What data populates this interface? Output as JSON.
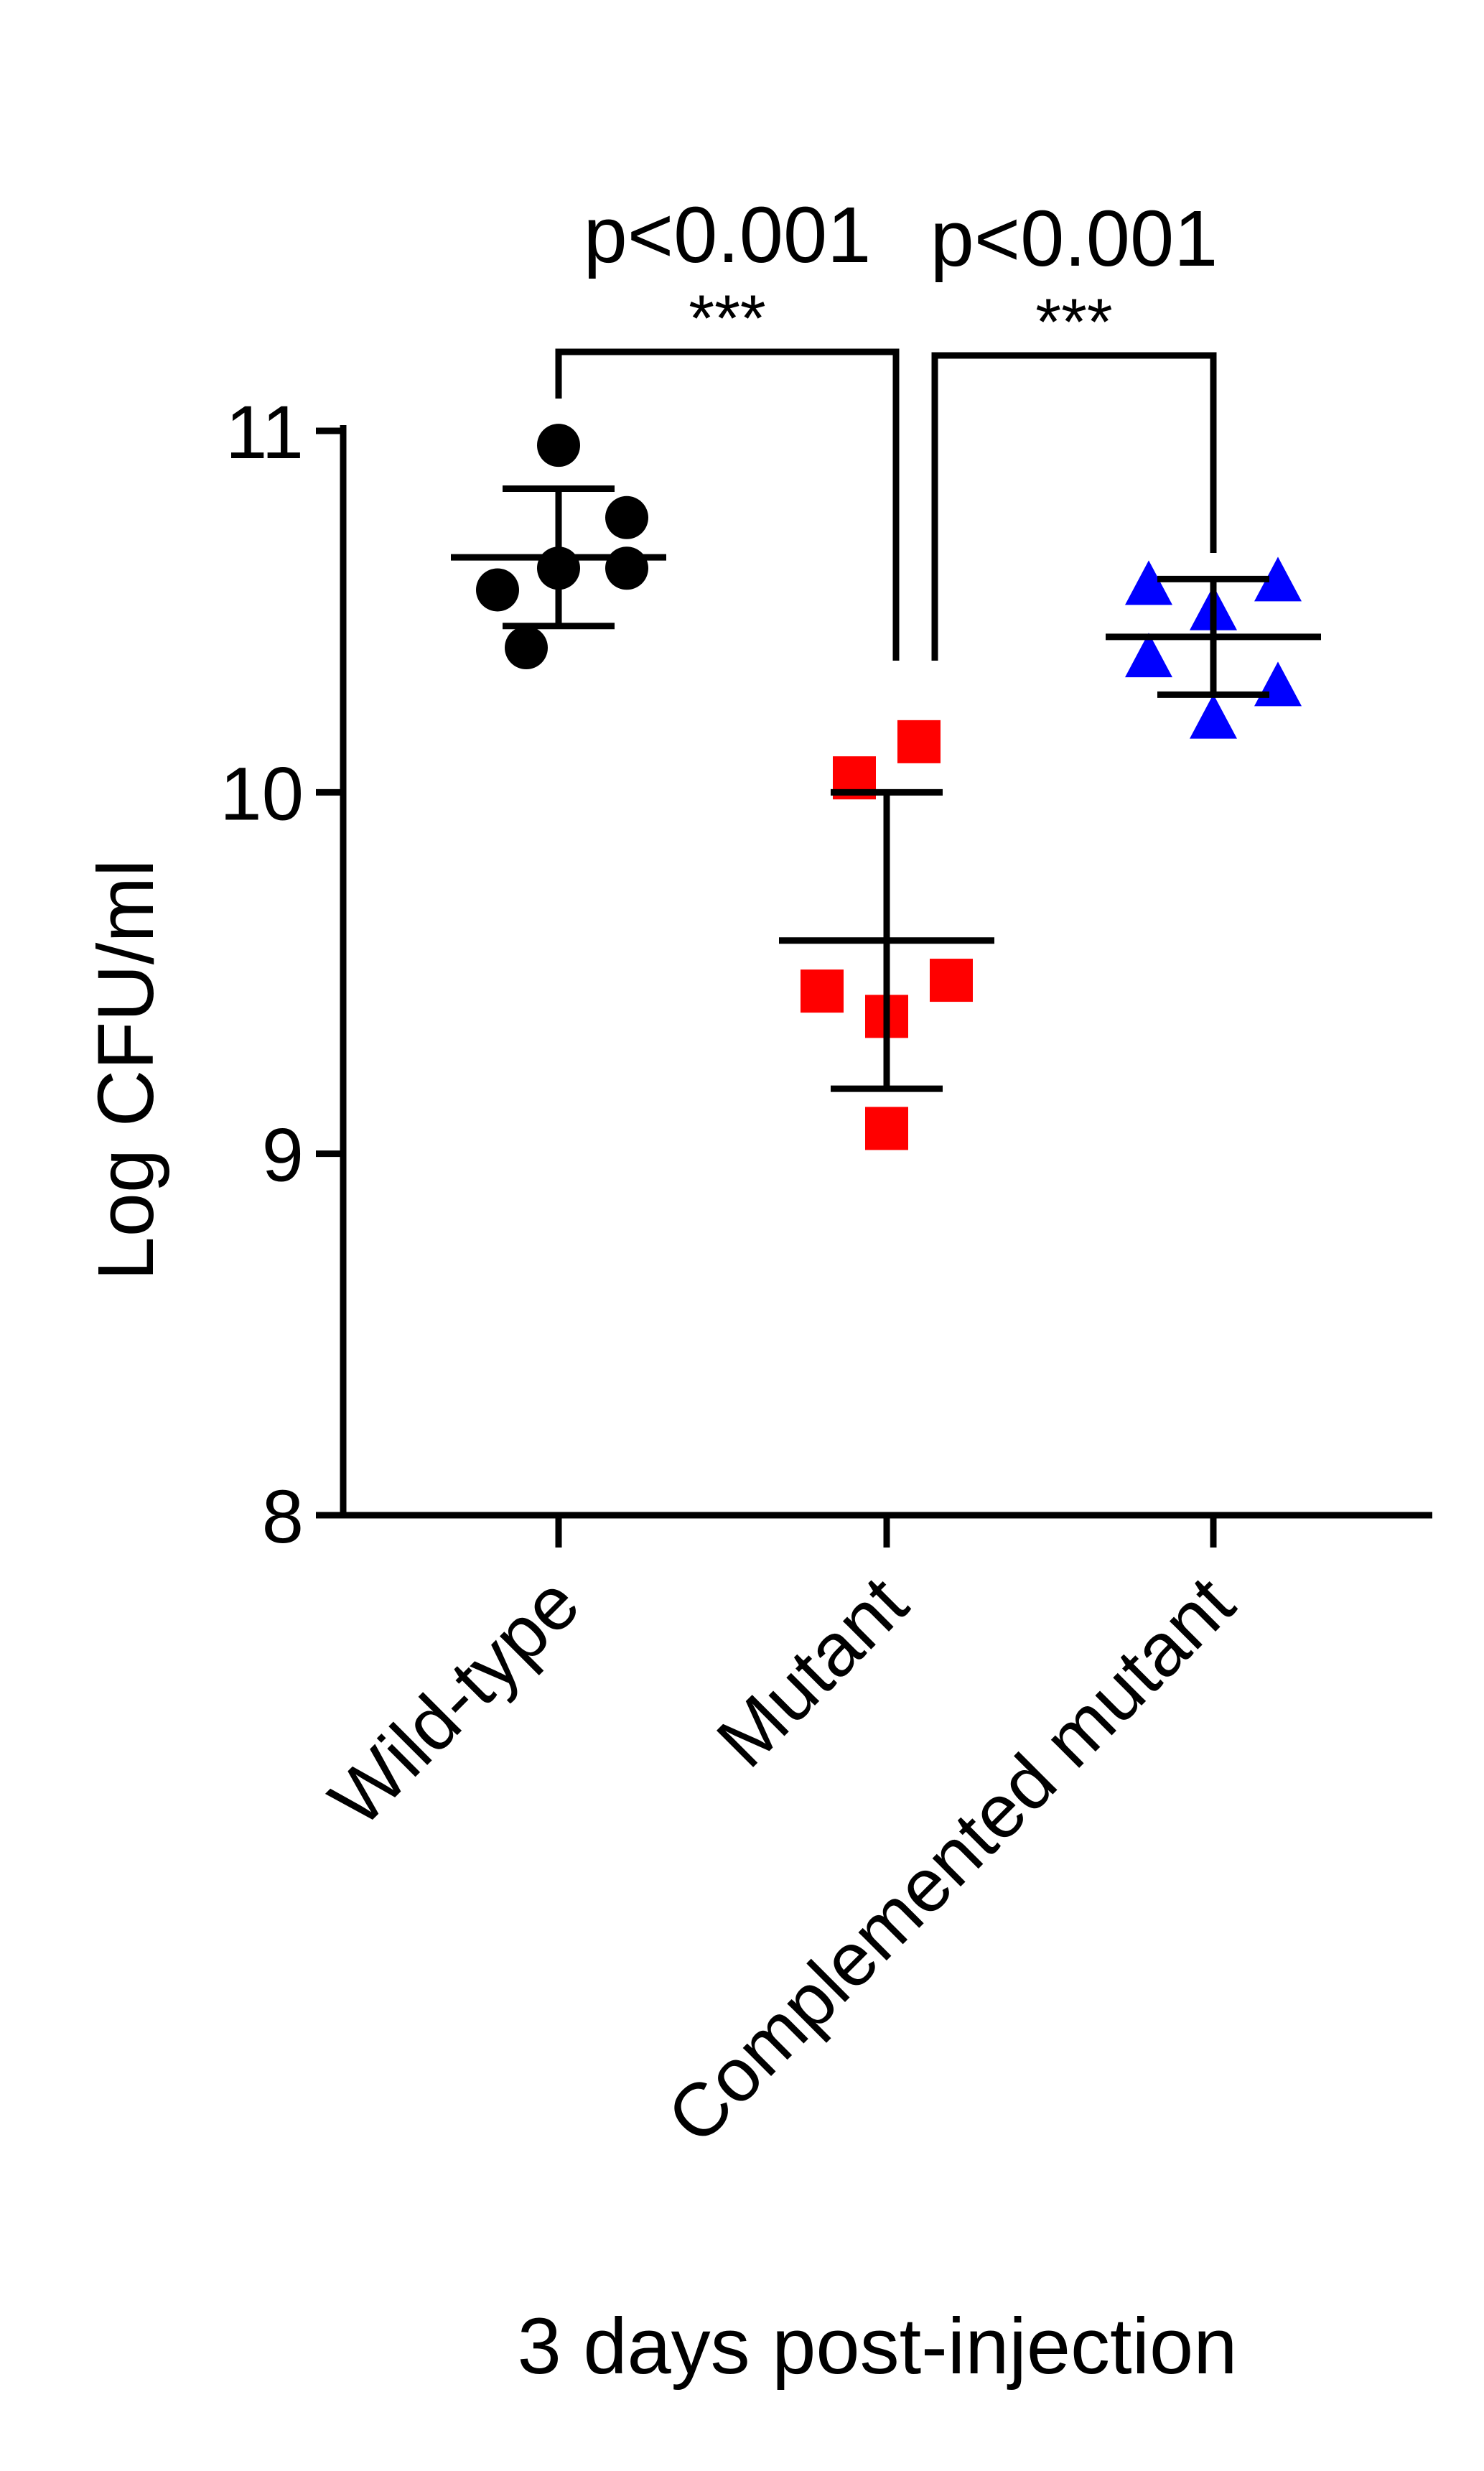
{
  "chart_data": {
    "type": "scatter",
    "ylabel": "Log CFU/ml",
    "xlabel": "3 days post-injection",
    "ylim": [
      8,
      11
    ],
    "yticks": [
      "8",
      "9",
      "10",
      "11"
    ],
    "categories": [
      "Wild-type",
      "Mutant",
      "Complemented mutant"
    ],
    "series": [
      {
        "category": "Wild-type",
        "marker": "circle",
        "color": "#000000",
        "points": [
          10.96,
          10.76,
          10.62,
          10.56,
          10.62,
          10.4
        ],
        "mean": 10.65,
        "sd": 0.19
      },
      {
        "category": "Mutant",
        "marker": "square",
        "color": "#ff0000",
        "points": [
          10.14,
          10.04,
          9.48,
          9.45,
          9.38,
          9.07
        ],
        "mean": 9.59,
        "sd": 0.41
      },
      {
        "category": "Complemented mutant",
        "marker": "triangle",
        "color": "#0000ff",
        "points": [
          10.59,
          10.58,
          10.51,
          10.38,
          10.3,
          10.21
        ],
        "mean": 10.43,
        "sd": 0.16
      }
    ],
    "comparisons": [
      {
        "from": "Wild-type",
        "to": "Mutant",
        "pvalue": "p<0.001",
        "stars": "***"
      },
      {
        "from": "Mutant",
        "to": "Complemented mutant",
        "pvalue": "p<0.001",
        "stars": "***"
      }
    ],
    "grid": false,
    "legend": "none"
  }
}
